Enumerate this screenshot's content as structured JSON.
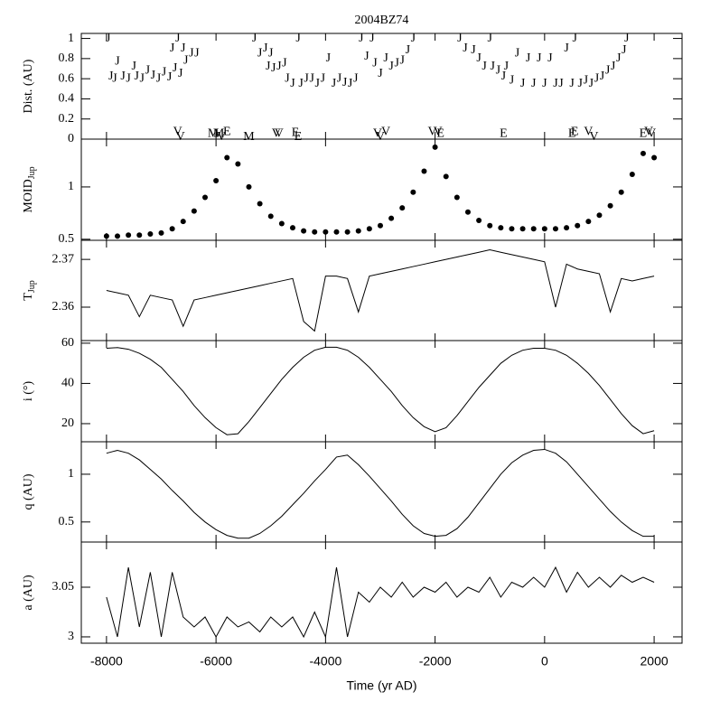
{
  "chart_data": [
    {
      "type": "scatter",
      "title": "2004BZ74",
      "y_label": "Dist. (AU)",
      "xlim": [
        -8460,
        2510
      ],
      "ylim": [
        0,
        1.05
      ],
      "yticks": [
        0,
        0.2,
        0.4,
        0.6,
        0.8,
        1
      ],
      "series": [
        {
          "name": "J",
          "color": "#000000",
          "x": [
            -7970,
            -7920,
            -7850,
            -7800,
            -7700,
            -7600,
            -7500,
            -7450,
            -7350,
            -7250,
            -7150,
            -7050,
            -6950,
            -6850,
            -6800,
            -6750,
            -6700,
            -6650,
            -6600,
            -6550,
            -6450,
            -6350,
            -5300,
            -5200,
            -5100,
            -5050,
            -5000,
            -4950,
            -4850,
            -4750,
            -4700,
            -4600,
            -4500,
            -4450,
            -4350,
            -4250,
            -4150,
            -4050,
            -3950,
            -3850,
            -3750,
            -3650,
            -3550,
            -3450,
            -3350,
            -3250,
            -3150,
            -3100,
            -3000,
            -2900,
            -2800,
            -2700,
            -2600,
            -2500,
            -2400,
            -1550,
            -1450,
            -1300,
            -1200,
            -1100,
            -1000,
            -950,
            -850,
            -750,
            -700,
            -600,
            -500,
            -400,
            -300,
            -200,
            -100,
            0,
            100,
            200,
            300,
            400,
            500,
            550,
            650,
            750,
            850,
            950,
            1050,
            1150,
            1250,
            1350,
            1450,
            1500
          ],
          "values": [
            1.0,
            0.62,
            0.6,
            0.77,
            0.62,
            0.6,
            0.72,
            0.62,
            0.6,
            0.68,
            0.63,
            0.6,
            0.66,
            0.61,
            0.9,
            0.7,
            1.0,
            0.65,
            0.9,
            0.78,
            0.85,
            0.85,
            1.0,
            0.85,
            0.9,
            0.72,
            0.85,
            0.7,
            0.72,
            0.75,
            0.6,
            0.55,
            1.0,
            0.55,
            0.6,
            0.6,
            0.55,
            0.6,
            0.8,
            0.55,
            0.6,
            0.56,
            0.55,
            0.6,
            1.0,
            0.82,
            1.0,
            0.75,
            0.65,
            0.8,
            0.72,
            0.75,
            0.78,
            0.88,
            1.0,
            1.0,
            0.9,
            0.88,
            0.8,
            0.72,
            1.0,
            0.72,
            0.68,
            0.62,
            0.72,
            0.58,
            0.85,
            0.55,
            0.8,
            0.55,
            0.8,
            0.55,
            0.8,
            0.55,
            0.55,
            0.9,
            0.55,
            1.0,
            0.55,
            0.58,
            0.55,
            0.6,
            0.62,
            0.68,
            0.72,
            0.8,
            0.88,
            1.0
          ]
        },
        {
          "name": "V",
          "color": "#000000",
          "x": [
            -6700,
            -6650,
            -5900,
            -4900,
            -4850,
            -3050,
            -3000,
            -2900,
            -2050,
            -1950,
            800,
            900,
            1900,
            1950
          ],
          "values": [
            0.07,
            0.02,
            0.02,
            0.05,
            0.05,
            0.05,
            0.02,
            0.07,
            0.07,
            0.07,
            0.07,
            0.02,
            0.07,
            0.05
          ]
        },
        {
          "name": "M",
          "color": "#000000",
          "x": [
            -6050,
            -5950,
            -5400
          ],
          "values": [
            0.05,
            0.05,
            0.02
          ]
        },
        {
          "name": "E",
          "color": "#000000",
          "x": [
            -5800,
            -4550,
            -4500,
            -1900,
            -750,
            500,
            550,
            1800
          ],
          "values": [
            0.07,
            0.06,
            0.02,
            0.05,
            0.05,
            0.05,
            0.07,
            0.05
          ]
        }
      ]
    },
    {
      "type": "scatter",
      "y_label": "MOID",
      "y_label_sub": "Jup",
      "xlim": [
        -8460,
        2510
      ],
      "ylim": [
        0.49,
        1.457
      ],
      "yticks": [
        0.5,
        1
      ],
      "series": [
        {
          "color": "#000000",
          "x": [
            -8000,
            -7800,
            -7600,
            -7400,
            -7200,
            -7000,
            -6800,
            -6600,
            -6400,
            -6200,
            -6000,
            -5800,
            -5600,
            -5400,
            -5200,
            -5000,
            -4800,
            -4600,
            -4400,
            -4200,
            -4000,
            -3800,
            -3600,
            -3400,
            -3200,
            -3000,
            -2800,
            -2600,
            -2400,
            -2200,
            -2000,
            -1800,
            -1600,
            -1400,
            -1200,
            -1000,
            -800,
            -600,
            -400,
            -200,
            0,
            200,
            400,
            600,
            800,
            1000,
            1200,
            1400,
            1600,
            1800,
            2000
          ],
          "values": [
            0.53,
            0.53,
            0.54,
            0.54,
            0.55,
            0.56,
            0.6,
            0.67,
            0.77,
            0.9,
            1.06,
            1.28,
            1.22,
            1.0,
            0.84,
            0.72,
            0.65,
            0.61,
            0.58,
            0.57,
            0.57,
            0.57,
            0.57,
            0.58,
            0.6,
            0.63,
            0.7,
            0.8,
            0.95,
            1.15,
            1.38,
            1.1,
            0.9,
            0.76,
            0.68,
            0.63,
            0.61,
            0.6,
            0.6,
            0.6,
            0.6,
            0.6,
            0.61,
            0.63,
            0.67,
            0.73,
            0.82,
            0.95,
            1.12,
            1.32,
            1.28
          ]
        }
      ]
    },
    {
      "type": "line",
      "y_label": "T",
      "y_label_sub": "Jup",
      "xlim": [
        -8460,
        2510
      ],
      "ylim": [
        2.353,
        2.374
      ],
      "yticks": [
        2.36,
        2.37
      ],
      "series": [
        {
          "color": "#000000",
          "x": [
            -8000,
            -7800,
            -7600,
            -7400,
            -7200,
            -7000,
            -6800,
            -6600,
            -6400,
            -6200,
            -6000,
            -5800,
            -5600,
            -5400,
            -5200,
            -5000,
            -4800,
            -4600,
            -4400,
            -4200,
            -4000,
            -3800,
            -3600,
            -3400,
            -3200,
            -3000,
            -2800,
            -2600,
            -2400,
            -2200,
            -2000,
            -1800,
            -1600,
            -1400,
            -1200,
            -1000,
            -800,
            -600,
            -400,
            -200,
            0,
            200,
            400,
            600,
            800,
            1000,
            1200,
            1400,
            1600,
            1800,
            2000
          ],
          "values": [
            2.3635,
            2.363,
            2.3625,
            2.358,
            2.3625,
            2.362,
            2.3615,
            2.356,
            2.3615,
            2.362,
            2.3625,
            2.363,
            2.3635,
            2.364,
            2.3645,
            2.365,
            2.3655,
            2.366,
            2.357,
            2.355,
            2.3665,
            2.3665,
            2.366,
            2.359,
            2.3665,
            2.367,
            2.3675,
            2.368,
            2.3685,
            2.369,
            2.3695,
            2.37,
            2.3705,
            2.371,
            2.3715,
            2.372,
            2.3715,
            2.371,
            2.3705,
            2.37,
            2.3695,
            2.36,
            2.369,
            2.368,
            2.3675,
            2.367,
            2.359,
            2.366,
            2.3655,
            2.366,
            2.3665
          ]
        }
      ]
    },
    {
      "type": "line",
      "y_label": "i (°)",
      "xlim": [
        -8460,
        2510
      ],
      "ylim": [
        11,
        61.3
      ],
      "yticks": [
        20,
        40,
        60
      ],
      "series": [
        {
          "color": "#000000",
          "x": [
            -8000,
            -7800,
            -7600,
            -7400,
            -7200,
            -7000,
            -6800,
            -6600,
            -6400,
            -6200,
            -6000,
            -5800,
            -5600,
            -5400,
            -5200,
            -5000,
            -4800,
            -4600,
            -4400,
            -4200,
            -4000,
            -3800,
            -3600,
            -3400,
            -3200,
            -3000,
            -2800,
            -2600,
            -2400,
            -2200,
            -2000,
            -1800,
            -1600,
            -1400,
            -1200,
            -1000,
            -800,
            -600,
            -400,
            -200,
            0,
            200,
            400,
            600,
            800,
            1000,
            1200,
            1400,
            1600,
            1800,
            2000
          ],
          "values": [
            57.5,
            57.8,
            57,
            55,
            52,
            48,
            42,
            36,
            29,
            23,
            18,
            14.5,
            15,
            21,
            28,
            35,
            42,
            48,
            53,
            56.5,
            58,
            58,
            56.5,
            53,
            48,
            42,
            36,
            29,
            23,
            18.5,
            16,
            18,
            24,
            31,
            38,
            44,
            50,
            54,
            56.5,
            57.5,
            57.5,
            56.5,
            54,
            50,
            45,
            39,
            32,
            25,
            19,
            15,
            16.5
          ]
        }
      ]
    },
    {
      "type": "line",
      "y_label": "q (AU)",
      "xlim": [
        -8460,
        2510
      ],
      "ylim": [
        0.29,
        1.34
      ],
      "yticks": [
        0.5,
        1
      ],
      "series": [
        {
          "color": "#000000",
          "x": [
            -8000,
            -7800,
            -7600,
            -7400,
            -7200,
            -7000,
            -6800,
            -6600,
            -6400,
            -6200,
            -6000,
            -5800,
            -5600,
            -5400,
            -5200,
            -5000,
            -4800,
            -4600,
            -4400,
            -4200,
            -4000,
            -3800,
            -3600,
            -3400,
            -3200,
            -3000,
            -2800,
            -2600,
            -2400,
            -2200,
            -2000,
            -1800,
            -1600,
            -1400,
            -1200,
            -1000,
            -800,
            -600,
            -400,
            -200,
            0,
            200,
            400,
            600,
            800,
            1000,
            1200,
            1400,
            1600,
            1800,
            2000
          ],
          "values": [
            1.22,
            1.25,
            1.22,
            1.15,
            1.05,
            0.95,
            0.83,
            0.72,
            0.6,
            0.5,
            0.42,
            0.36,
            0.33,
            0.33,
            0.38,
            0.46,
            0.56,
            0.68,
            0.8,
            0.93,
            1.05,
            1.18,
            1.2,
            1.1,
            0.98,
            0.85,
            0.72,
            0.58,
            0.46,
            0.38,
            0.35,
            0.36,
            0.43,
            0.55,
            0.7,
            0.85,
            1.0,
            1.12,
            1.2,
            1.25,
            1.26,
            1.22,
            1.13,
            1.0,
            0.87,
            0.74,
            0.61,
            0.5,
            0.41,
            0.35,
            0.35
          ]
        }
      ]
    },
    {
      "type": "line",
      "y_label": "a (AU)",
      "x_label": "Time (yr AD)",
      "xlim": [
        -8460,
        2510
      ],
      "xticks": [
        -8000,
        -6000,
        -4000,
        -2000,
        0,
        2000
      ],
      "ylim": [
        2.9936,
        3.0955
      ],
      "yticks": [
        3,
        3.05
      ],
      "series": [
        {
          "color": "#000000",
          "x": [
            -8000,
            -7800,
            -7600,
            -7400,
            -7200,
            -7000,
            -6800,
            -6600,
            -6400,
            -6200,
            -6000,
            -5800,
            -5600,
            -5400,
            -5200,
            -5000,
            -4800,
            -4600,
            -4400,
            -4200,
            -4000,
            -3800,
            -3600,
            -3400,
            -3200,
            -3000,
            -2800,
            -2600,
            -2400,
            -2200,
            -2000,
            -1800,
            -1600,
            -1400,
            -1200,
            -1000,
            -800,
            -600,
            -400,
            -200,
            0,
            200,
            400,
            600,
            800,
            1000,
            1200,
            1400,
            1600,
            1800,
            2000
          ],
          "values": [
            3.04,
            3.0,
            3.07,
            3.01,
            3.065,
            3.0,
            3.065,
            3.02,
            3.01,
            3.02,
            3.0,
            3.02,
            3.01,
            3.015,
            3.005,
            3.02,
            3.01,
            3.02,
            3.0,
            3.025,
            3.0,
            3.07,
            3.0,
            3.045,
            3.035,
            3.05,
            3.04,
            3.055,
            3.04,
            3.05,
            3.045,
            3.055,
            3.04,
            3.05,
            3.045,
            3.06,
            3.04,
            3.055,
            3.05,
            3.06,
            3.05,
            3.07,
            3.045,
            3.065,
            3.05,
            3.06,
            3.05,
            3.062,
            3.055,
            3.06,
            3.055
          ]
        }
      ]
    }
  ]
}
